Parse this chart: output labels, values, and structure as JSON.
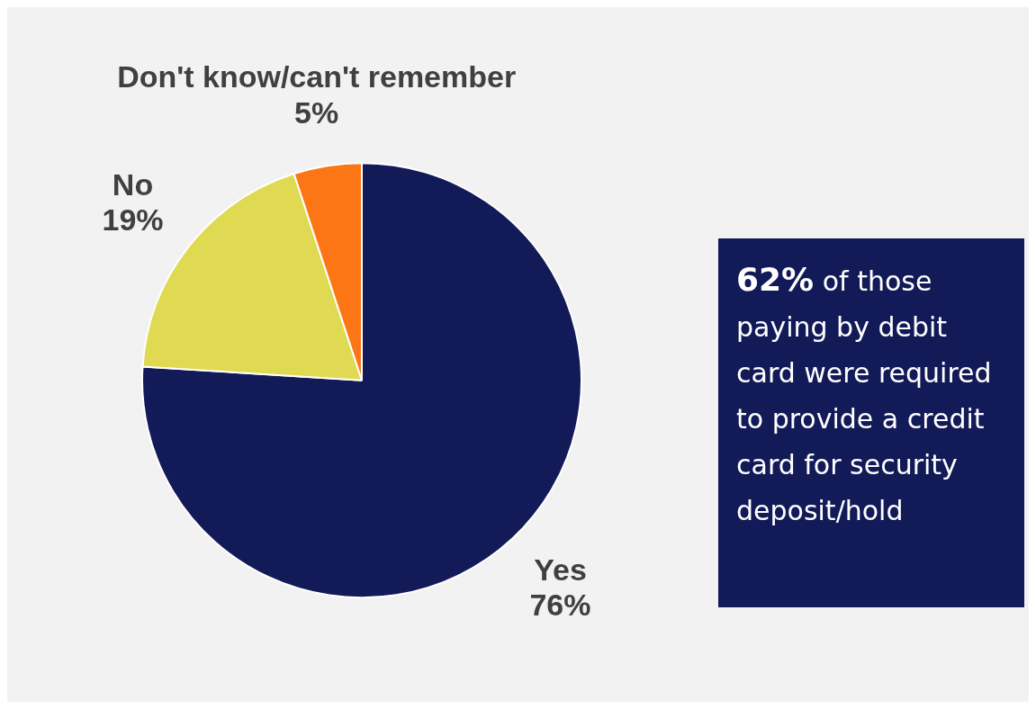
{
  "chart_data": {
    "type": "pie",
    "categories": [
      "Yes",
      "No",
      "Don't know/can't remember"
    ],
    "values": [
      76,
      19,
      5
    ],
    "value_labels": [
      "76%",
      "19%",
      "5%"
    ],
    "colors": [
      "#121a57",
      "#e0d952",
      "#fd7615"
    ],
    "legend": false,
    "annotations": [
      "62% of those paying by debit card were required to provide a credit card for security deposit/hold"
    ]
  }
}
